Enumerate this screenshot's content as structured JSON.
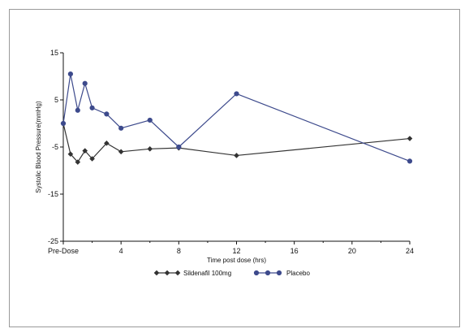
{
  "chart_data": {
    "type": "line",
    "xlabel": "Time post dose (hrs)",
    "ylabel": "Systolic Blood Pressure(mmHg)",
    "xlim": [
      0,
      24
    ],
    "ylim": [
      -25,
      15
    ],
    "x_ticks": [
      {
        "value": 0,
        "label": "Pre-Dose"
      },
      {
        "value": 4,
        "label": "4"
      },
      {
        "value": 8,
        "label": "8"
      },
      {
        "value": 12,
        "label": "12"
      },
      {
        "value": 16,
        "label": "16"
      },
      {
        "value": 20,
        "label": "20"
      },
      {
        "value": 24,
        "label": "24"
      }
    ],
    "y_ticks": [
      15,
      5,
      -5,
      -15,
      -25
    ],
    "grid": false,
    "legend_position": "bottom-center",
    "series": [
      {
        "name": "Sildenafil 100mg",
        "color": "#333333",
        "marker": "diamond",
        "points": [
          {
            "x": 0,
            "y": 0.0
          },
          {
            "x": 0.5,
            "y": -6.5
          },
          {
            "x": 1,
            "y": -8.2
          },
          {
            "x": 1.5,
            "y": -5.8
          },
          {
            "x": 2,
            "y": -7.5
          },
          {
            "x": 3,
            "y": -4.2
          },
          {
            "x": 4,
            "y": -6.0
          },
          {
            "x": 6,
            "y": -5.4
          },
          {
            "x": 8,
            "y": -5.2
          },
          {
            "x": 12,
            "y": -6.8
          },
          {
            "x": 24,
            "y": -3.2
          }
        ]
      },
      {
        "name": "Placebo",
        "color": "#3d4a8c",
        "marker": "circle",
        "points": [
          {
            "x": 0,
            "y": 0.0
          },
          {
            "x": 0.5,
            "y": 10.5
          },
          {
            "x": 1,
            "y": 2.8
          },
          {
            "x": 1.5,
            "y": 8.5
          },
          {
            "x": 2,
            "y": 3.3
          },
          {
            "x": 3,
            "y": 2.0
          },
          {
            "x": 4,
            "y": -1.0
          },
          {
            "x": 6,
            "y": 0.7
          },
          {
            "x": 8,
            "y": -5.0
          },
          {
            "x": 12,
            "y": 6.3
          },
          {
            "x": 24,
            "y": -8.0
          }
        ]
      }
    ]
  }
}
